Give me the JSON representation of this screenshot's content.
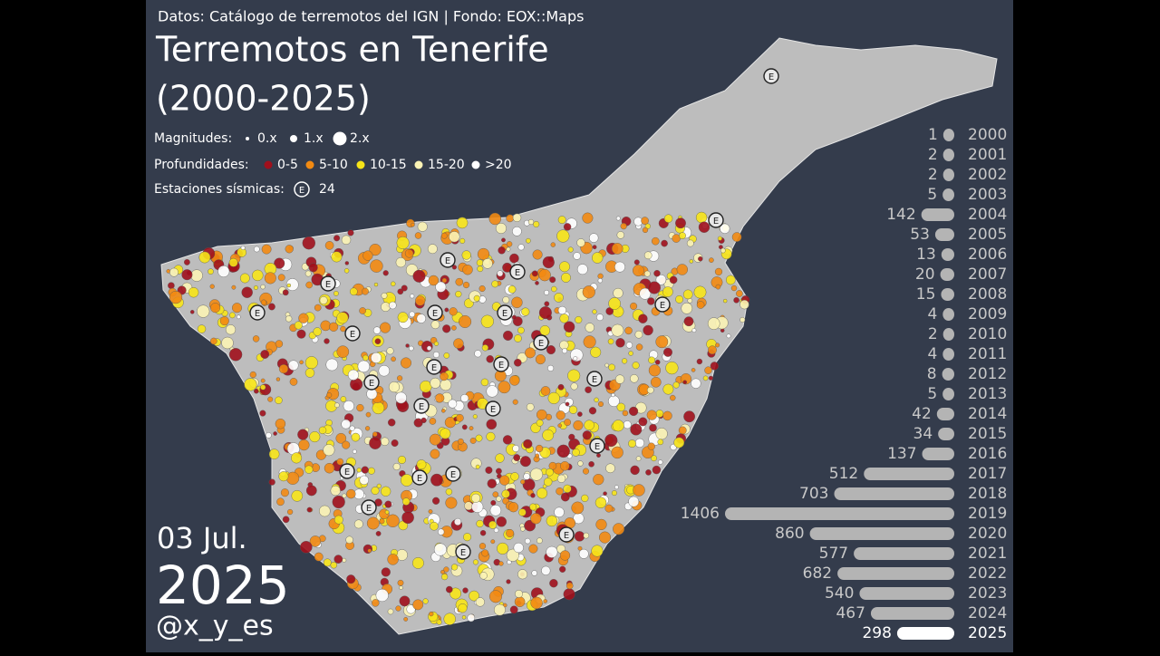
{
  "source": "Datos: Catálogo de terremotos del IGN | Fondo: EOX::Maps",
  "title_line1": "Terremotos en Tenerife",
  "title_line2": "(2000-2025)",
  "legend": {
    "magnitudes": {
      "label": "Magnitudes:",
      "items": [
        "0.x",
        "1.x",
        "2.x"
      ]
    },
    "depths": {
      "label": "Profundidades:",
      "items": [
        {
          "name": "0-5",
          "color": "#a0101c"
        },
        {
          "name": "5-10",
          "color": "#f28a12"
        },
        {
          "name": "10-15",
          "color": "#f7e418"
        },
        {
          "name": "15-20",
          "color": "#fbf3b5"
        },
        {
          "name": ">20",
          "color": "#ffffff"
        }
      ]
    },
    "stations": {
      "label": "Estaciones sísmicas:",
      "icon": "E",
      "count": "24"
    }
  },
  "date": "03 Jul.",
  "year": "2025",
  "handle": "@x_y_es",
  "year_counts": {
    "categories": [
      "2000",
      "2001",
      "2002",
      "2003",
      "2004",
      "2005",
      "2006",
      "2007",
      "2008",
      "2009",
      "2010",
      "2011",
      "2012",
      "2013",
      "2014",
      "2015",
      "2016",
      "2017",
      "2018",
      "2019",
      "2020",
      "2021",
      "2022",
      "2023",
      "2024",
      "2025"
    ],
    "values": [
      1,
      2,
      2,
      5,
      142,
      53,
      13,
      20,
      15,
      4,
      2,
      4,
      8,
      5,
      42,
      34,
      137,
      512,
      703,
      1406,
      860,
      577,
      682,
      540,
      467,
      298
    ],
    "color": "#b4b4b4",
    "highlight_color": "#ffffff"
  }
}
